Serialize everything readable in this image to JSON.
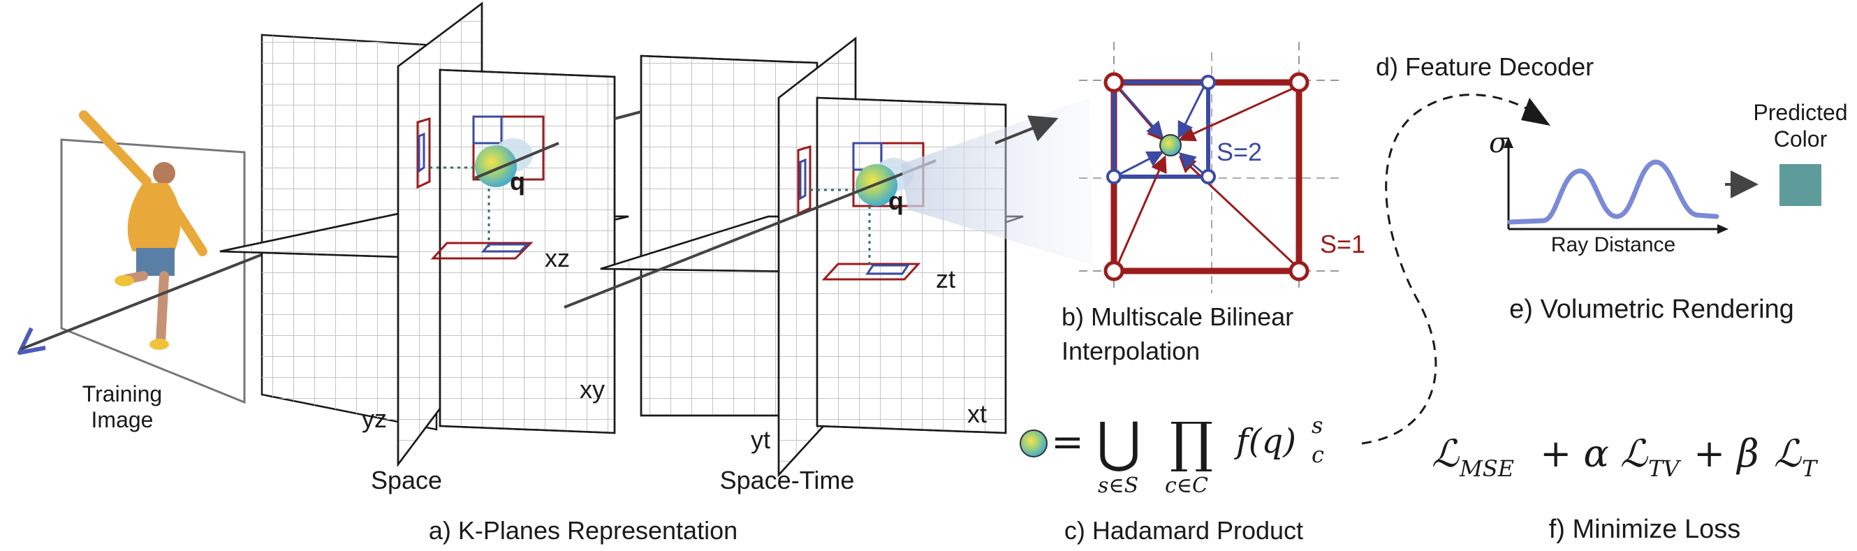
{
  "labels": {
    "training_image": [
      "Training",
      "Image"
    ],
    "space_caption": "Space",
    "spacetime_caption": "Space-Time",
    "kplanes_caption": "a) K-Planes Representation",
    "bilinear_caption_line1": "b) Multiscale Bilinear",
    "bilinear_caption_line2": "Interpolation",
    "hadamard_caption": "c) Hadamard Product",
    "feature_decoder": "d) Feature Decoder",
    "volumetric_rendering": "e) Volumetric Rendering",
    "minimize_loss": "f) Minimize Loss",
    "predicted_color": [
      "Predicted",
      "Color"
    ],
    "ray_distance": "Ray Distance",
    "sigma": "σ",
    "s2": "S=2",
    "s1": "S=1"
  },
  "planes": {
    "space": {
      "xz": "xz",
      "xy": "xy",
      "yz": "yz",
      "point": "q"
    },
    "spacetime": {
      "zt": "zt",
      "xt": "xt",
      "yt": "yt",
      "point": "q"
    }
  },
  "equations": {
    "hadamard": {
      "eq": "=",
      "union": "⋃",
      "prod": "∏",
      "union_sub": "s∈S",
      "prod_sub": "c∈C",
      "term": "f(q)",
      "sup": "s",
      "sub": "c"
    },
    "loss": {
      "t1": "ℒ",
      "t1_sub": "MSE",
      "op1": "+ α",
      "t2": "ℒ",
      "t2_sub": "TV",
      "op2": "+ β",
      "t3": "ℒ",
      "t3_sub": "T"
    }
  },
  "colors": {
    "grid_red": "#9b1c1c",
    "grid_blue": "#3b4aa3",
    "curve": "#7b8ad6",
    "predicted_swatch": "#5e9c9b",
    "ray_marker": "#4a5dbd",
    "figure_shirt": "#e9a93a"
  }
}
